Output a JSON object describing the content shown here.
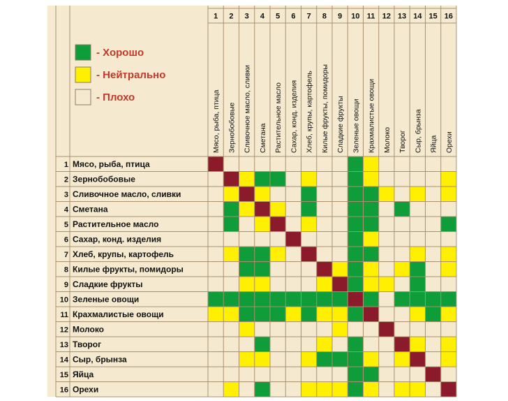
{
  "chart_data": {
    "type": "heatmap",
    "colors": {
      "background": "#f5ead0",
      "grid": "#a89070",
      "good": "#0f9d3a",
      "neutral": "#ffef00",
      "bad": "#f5ead0",
      "diagonal": "#8b1a2b"
    },
    "legend": [
      {
        "key": "good",
        "label": "- Хорошо"
      },
      {
        "key": "neutral",
        "label": "- Нейтрально"
      },
      {
        "key": "bad",
        "label": "- Плохо"
      }
    ],
    "items": [
      {
        "num": "1",
        "row": "Мясо, рыба, птица",
        "col": "Мясо, рыба, птица"
      },
      {
        "num": "2",
        "row": "Зернобобовые",
        "col": "Зернобобовые"
      },
      {
        "num": "3",
        "row": "Сливочное масло, сливки",
        "col": "Сливочное масло, сливки"
      },
      {
        "num": "4",
        "row": "Сметана",
        "col": "Сметана"
      },
      {
        "num": "5",
        "row": "Растительное масло",
        "col": "Растительное масло"
      },
      {
        "num": "6",
        "row": "Сахар, конд. изделия",
        "col": "Сахар, конд. изделия"
      },
      {
        "num": "7",
        "row": "Хлеб, крупы, картофель",
        "col": "Хлеб, крупы, картофель"
      },
      {
        "num": "8",
        "row": "Килые фрукты, помидоры",
        "col": "Килые фрукты, помидоры"
      },
      {
        "num": "9",
        "row": "Сладкие фрукты",
        "col": "Сладкие фрукты"
      },
      {
        "num": "10",
        "row": "Зеленые овощи",
        "col": "Зеленые овощи"
      },
      {
        "num": "11",
        "row": "Крахмалистые овощи",
        "col": "Крахмалистые овощи"
      },
      {
        "num": "12",
        "row": "Молоко",
        "col": "Молоко"
      },
      {
        "num": "13",
        "row": "Творог",
        "col": "Творог"
      },
      {
        "num": "14",
        "row": "Сыр, брынза",
        "col": "Сыр, брынза"
      },
      {
        "num": "15",
        "row": "Яйца",
        "col": "Яйца"
      },
      {
        "num": "16",
        "row": "Орехи",
        "col": "Орехи"
      }
    ],
    "value_codes": {
      "G": "good",
      "Y": "neutral",
      "B": "bad",
      "D": "diagonal"
    },
    "matrix": [
      "DBBBBBBBBGYBBBBB",
      "BDYGGBYBBGYBBBBY",
      "BYDYBBGBBGGYBYBY",
      "BGYDYBGBBGGBGBBB",
      "BGBYDBYBBGGBBBBG",
      "BBBBBDBBBGYBBBBB",
      "BYGGYBDBBGGBBYBY",
      "BBGGBBBDYGYBYGBY",
      "BBYYBBBYDGYYBGBB",
      "GGGGGGGGGDGBGGGG",
      "YYGGGYGYYGDBBYGY",
      "BBYBBBBBYBBDBBBB",
      "BBBGBBBYBGBBDYBY",
      "BBYYBBYGGGYBYDBY",
      "BBBBBBBBBGGBBBDB",
      "BYBGBBYYYGYBYYBD"
    ]
  }
}
